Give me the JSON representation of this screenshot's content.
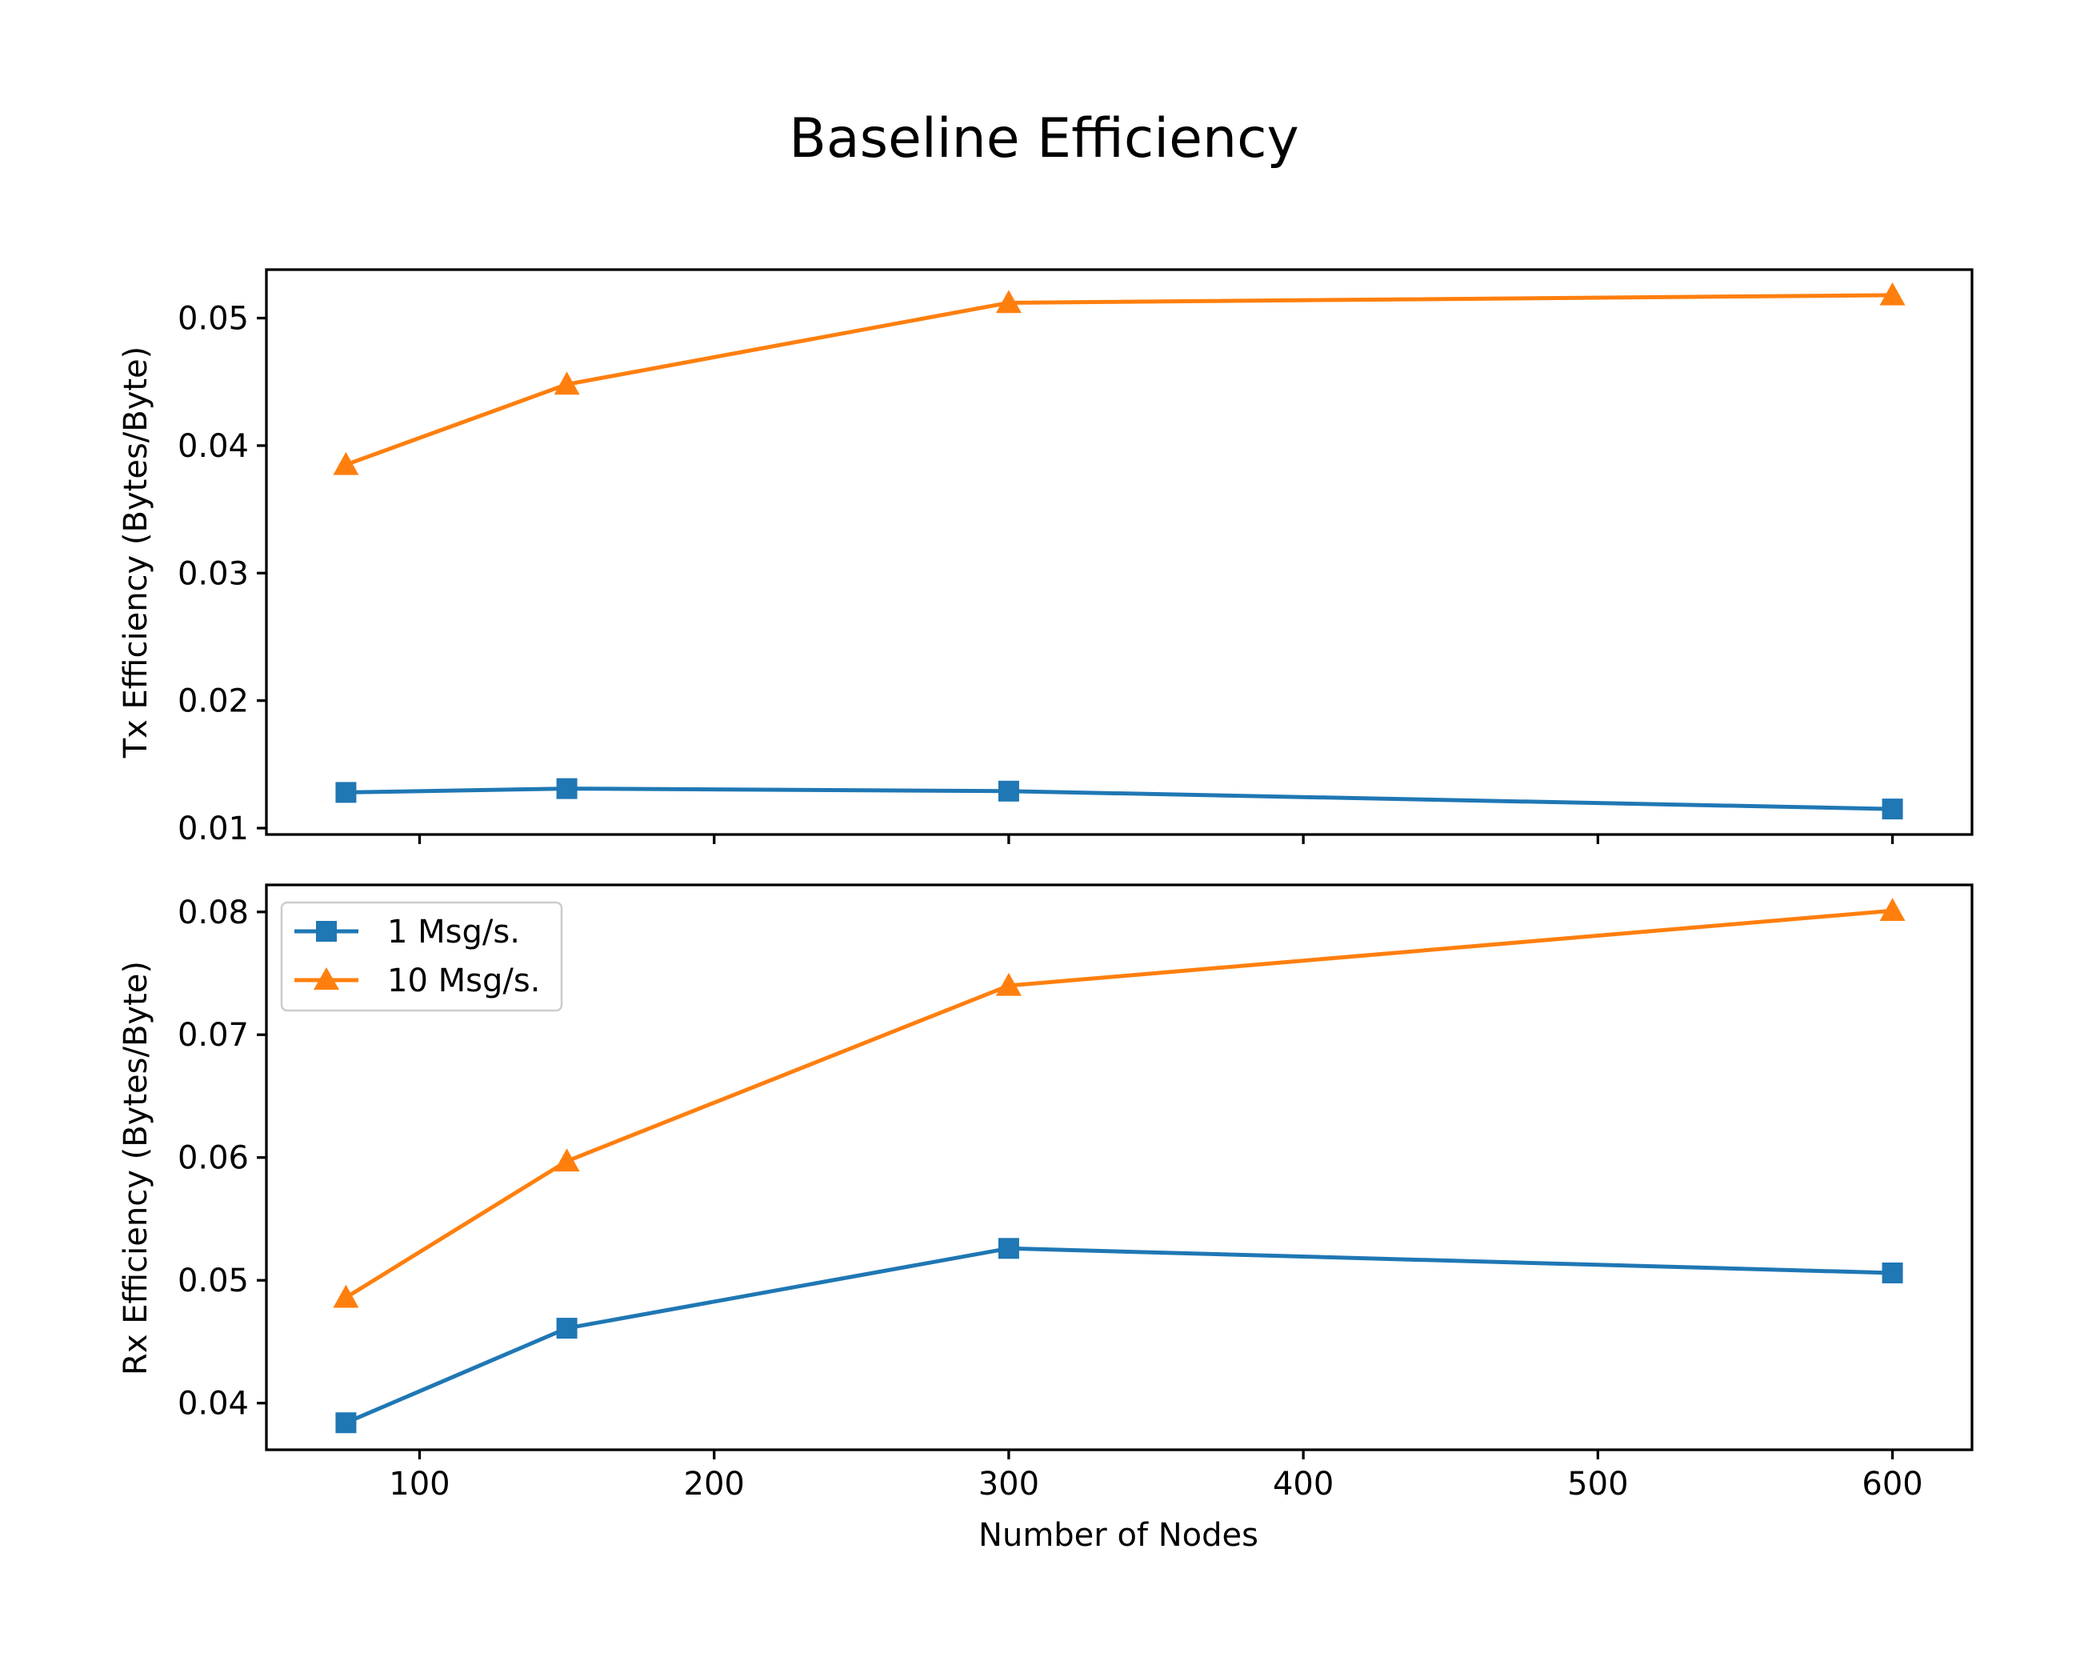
{
  "chart_data": {
    "type": "line",
    "title": "Baseline Efficiency",
    "xlabel": "Number of Nodes",
    "x": [
      75,
      150,
      300,
      600
    ],
    "xlim": [
      48,
      627
    ],
    "xticks": [
      100,
      200,
      300,
      400,
      500,
      600
    ],
    "xtick_labels": [
      "100",
      "200",
      "300",
      "400",
      "500",
      "600"
    ],
    "legend": {
      "placement": "upper-left",
      "subplot": "bottom"
    },
    "colors": {
      "series_1": "#1f77b4",
      "series_2": "#ff7f0e"
    },
    "subplots": [
      {
        "ylabel": "Tx Efficiency (Bytes/Byte)",
        "ylim": [
          0.0095,
          0.0538
        ],
        "yticks": [
          0.01,
          0.02,
          0.03,
          0.04,
          0.05
        ],
        "ytick_labels": [
          "0.01",
          "0.02",
          "0.03",
          "0.04",
          "0.05"
        ],
        "show_xtick_labels": false,
        "series": [
          {
            "name": "1 Msg/s.",
            "color": "#1f77b4",
            "marker": "square",
            "values": [
              0.0128,
              0.0131,
              0.0129,
              0.0115
            ]
          },
          {
            "name": "10 Msg/s.",
            "color": "#ff7f0e",
            "marker": "triangle",
            "values": [
              0.0385,
              0.0448,
              0.0512,
              0.0518
            ]
          }
        ]
      },
      {
        "ylabel": "Rx Efficiency (Bytes/Byte)",
        "ylim": [
          0.0362,
          0.0822
        ],
        "yticks": [
          0.04,
          0.05,
          0.06,
          0.07,
          0.08
        ],
        "ytick_labels": [
          "0.04",
          "0.05",
          "0.06",
          "0.07",
          "0.08"
        ],
        "show_xtick_labels": true,
        "series": [
          {
            "name": "1 Msg/s.",
            "color": "#1f77b4",
            "marker": "square",
            "values": [
              0.0384,
              0.0461,
              0.0526,
              0.0506
            ]
          },
          {
            "name": "10 Msg/s.",
            "color": "#ff7f0e",
            "marker": "triangle",
            "values": [
              0.0486,
              0.0597,
              0.074,
              0.0801
            ]
          }
        ]
      }
    ]
  }
}
